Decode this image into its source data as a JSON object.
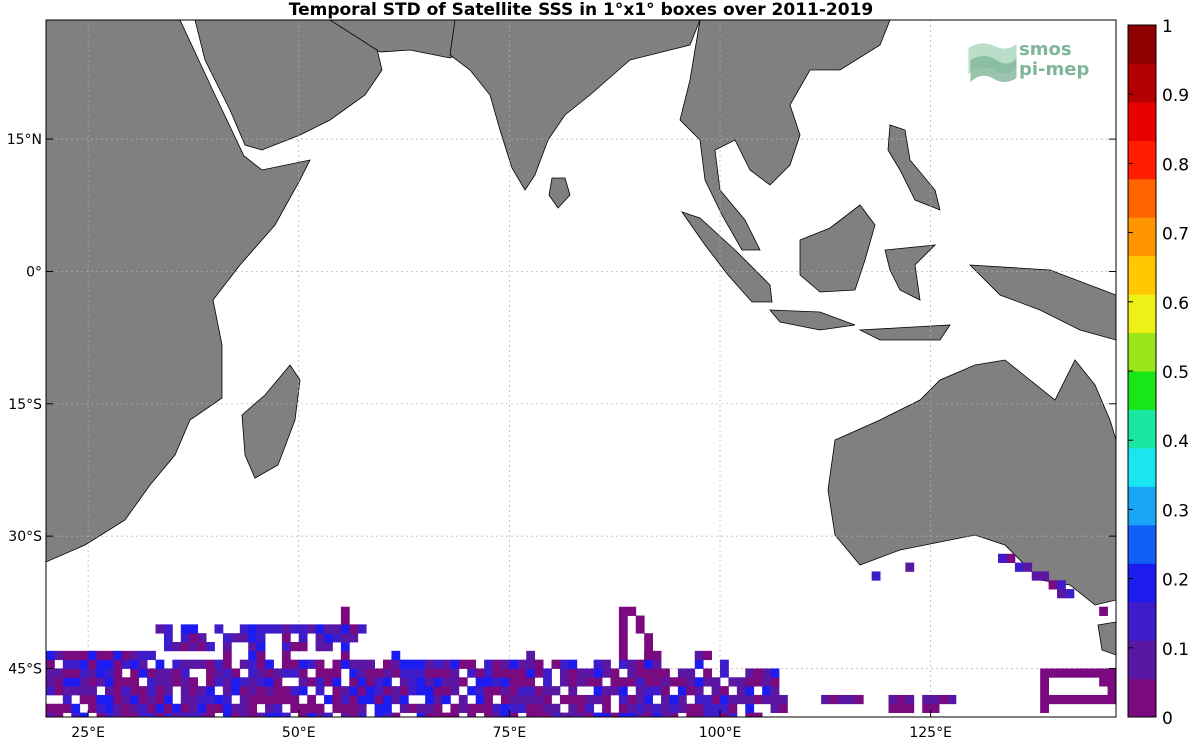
{
  "title": "Temporal STD of Satellite SSS in 1°x1° boxes over 2011-2019",
  "watermark": {
    "line1": "smos",
    "line2": "pi-mep"
  },
  "map": {
    "lon_range": [
      20,
      147
    ],
    "lat_range": [
      -50.5,
      28.5
    ],
    "lon_ticks": [
      {
        "value": 25,
        "label": "25°E"
      },
      {
        "value": 50,
        "label": "50°E"
      },
      {
        "value": 75,
        "label": "75°E"
      },
      {
        "value": 100,
        "label": "100°E"
      },
      {
        "value": 125,
        "label": "125°E"
      }
    ],
    "lat_ticks": [
      {
        "value": 15,
        "label": "15°N"
      },
      {
        "value": 0,
        "label": "0°"
      },
      {
        "value": -15,
        "label": "15°S"
      },
      {
        "value": -30,
        "label": "30°S"
      },
      {
        "value": -45,
        "label": "45°S"
      }
    ],
    "grid": true,
    "land_color": "#808080",
    "colorbar": {
      "min": 0,
      "max": 1,
      "ticks": [
        "0",
        "0.1",
        "0.2",
        "0.3",
        "0.4",
        "0.5",
        "0.6",
        "0.7",
        "0.8",
        "0.9",
        "1"
      ],
      "colors": [
        "#7a0a80",
        "#5a17a3",
        "#3e1cc9",
        "#1c1cf0",
        "#1060f5",
        "#1aa4f5",
        "#19e6f0",
        "#19e6a0",
        "#19e619",
        "#9be619",
        "#f0f019",
        "#ffc800",
        "#ff9600",
        "#ff6400",
        "#ff1e00",
        "#e60000",
        "#b40000",
        "#8c0000"
      ]
    }
  }
}
